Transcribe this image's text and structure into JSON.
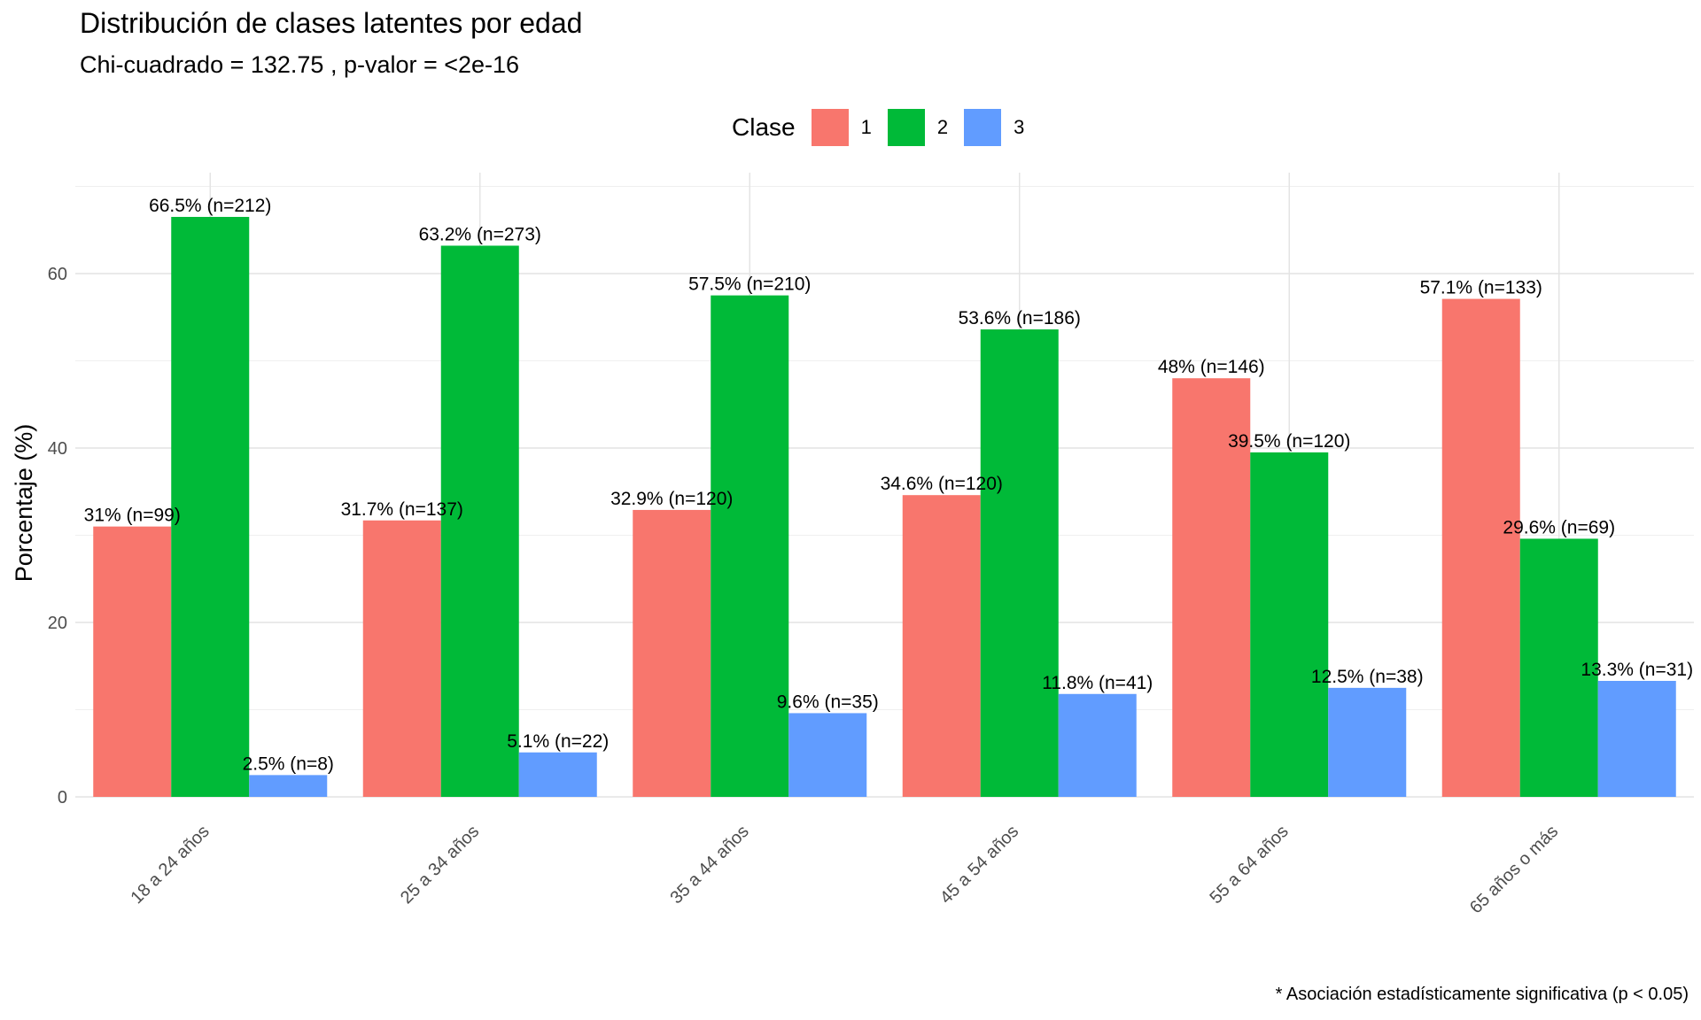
{
  "chart_data": {
    "type": "bar",
    "title": "Distribución de clases latentes por edad",
    "subtitle": "Chi-cuadrado = 132.75 , p-valor = <2e-16",
    "xlabel": "",
    "ylabel": "Porcentaje (%)",
    "ylim": [
      0,
      70
    ],
    "yticks": [
      0,
      20,
      40,
      60
    ],
    "grid": true,
    "legend": {
      "title": "Clase",
      "position": "top"
    },
    "caption": "* Asociación estadísticamente significativa (p < 0.05)",
    "categories": [
      "18 a 24 años",
      "25 a 34 años",
      "35 a 44 años",
      "45 a 54 años",
      "55 a 64 años",
      "65 años o más"
    ],
    "series": [
      {
        "name": "1",
        "color": "#F8766D",
        "values": [
          31,
          31.7,
          32.9,
          34.6,
          48,
          57.1
        ],
        "labels": [
          "31% (n=99)",
          "31.7% (n=137)",
          "32.9% (n=120)",
          "34.6% (n=120)",
          "48% (n=146)",
          "57.1% (n=133)"
        ]
      },
      {
        "name": "2",
        "color": "#00BA38",
        "values": [
          66.5,
          63.2,
          57.5,
          53.6,
          39.5,
          29.6
        ],
        "labels": [
          "66.5% (n=212)",
          "63.2% (n=273)",
          "57.5% (n=210)",
          "53.6% (n=186)",
          "39.5% (n=120)",
          "29.6% (n=69)"
        ]
      },
      {
        "name": "3",
        "color": "#619CFF",
        "values": [
          2.5,
          5.1,
          9.6,
          11.8,
          12.5,
          13.3
        ],
        "labels": [
          "2.5% (n=8)",
          "5.1% (n=22)",
          "9.6% (n=35)",
          "11.8% (n=41)",
          "12.5% (n=38)",
          "13.3% (n=31)"
        ]
      }
    ]
  }
}
